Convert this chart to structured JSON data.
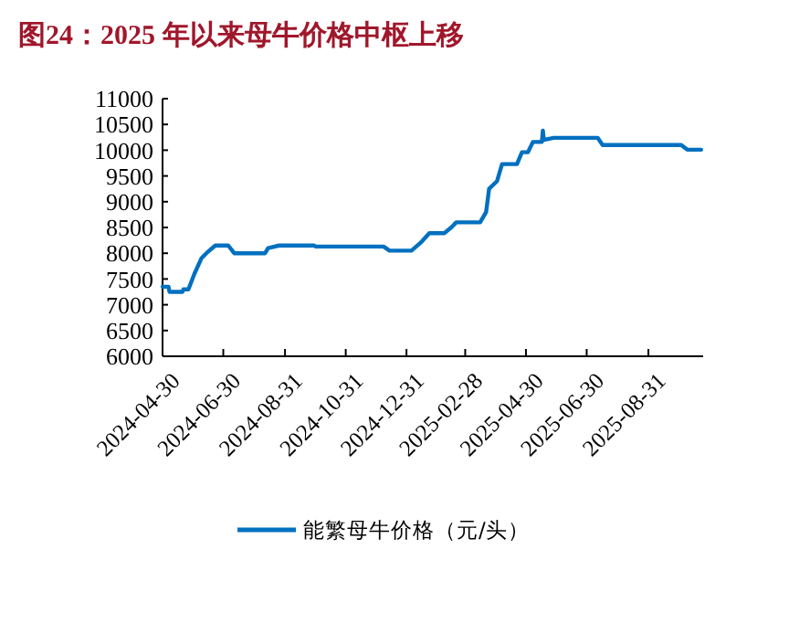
{
  "chart_data": {
    "type": "line",
    "title": "图24：2025 年以来母牛价格中枢上移",
    "xlim": [
      "2024-04-30",
      "2025-10-25"
    ],
    "xticks": [
      "2024-04-30",
      "2024-06-30",
      "2024-08-31",
      "2024-10-31",
      "2024-12-31",
      "2025-02-28",
      "2025-04-30",
      "2025-06-30",
      "2025-08-31"
    ],
    "ylim": [
      6000,
      11000
    ],
    "yticks": [
      6000,
      6500,
      7000,
      7500,
      8000,
      8500,
      9000,
      9500,
      10000,
      10500,
      11000
    ],
    "grid": false,
    "legend": "bottom",
    "series": [
      {
        "name": "能繁母牛价格（元/头）",
        "color": "#0070c0",
        "x": [
          "2024-04-30",
          "2024-05-06",
          "2024-05-07",
          "2024-05-20",
          "2024-05-21",
          "2024-05-26",
          "2024-06-01",
          "2024-06-08",
          "2024-06-13",
          "2024-06-22",
          "2024-07-05",
          "2024-07-11",
          "2024-08-11",
          "2024-08-14",
          "2024-08-25",
          "2024-09-29",
          "2024-10-01",
          "2024-12-08",
          "2024-12-14",
          "2025-01-05",
          "2025-01-14",
          "2025-01-23",
          "2025-02-07",
          "2025-02-14",
          "2025-02-19",
          "2025-03-15",
          "2025-03-21",
          "2025-03-24",
          "2025-04-01",
          "2025-04-06",
          "2025-04-21",
          "2025-04-26",
          "2025-05-02",
          "2025-05-07",
          "2025-05-16",
          "2025-05-17",
          "2025-05-18",
          "2025-05-28",
          "2025-07-11",
          "2025-07-16",
          "2025-10-03",
          "2025-10-09",
          "2025-10-23"
        ],
        "values": [
          7350,
          7350,
          7250,
          7250,
          7300,
          7300,
          7600,
          7900,
          8000,
          8150,
          8150,
          8000,
          8000,
          8100,
          8150,
          8150,
          8130,
          8130,
          8050,
          8050,
          8200,
          8390,
          8390,
          8500,
          8600,
          8600,
          8800,
          9250,
          9400,
          9730,
          9730,
          9960,
          9960,
          10160,
          10160,
          10380,
          10200,
          10240,
          10240,
          10100,
          10100,
          10010,
          10010
        ]
      }
    ]
  }
}
